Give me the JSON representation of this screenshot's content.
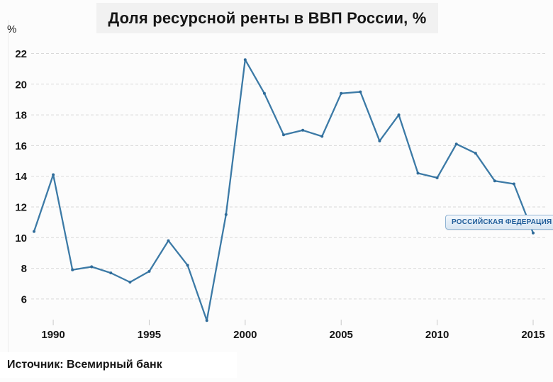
{
  "title": {
    "text": "Доля ресурсной ренты в ВВП России, %"
  },
  "y_axis": {
    "unit_label": "%"
  },
  "annotation": {
    "text": "РОССИЙСКАЯ ФЕДЕРАЦИЯ"
  },
  "source": {
    "text": "Источник: Всемирный банк"
  },
  "colors": {
    "line": "#3c7aa6",
    "marker": "#2f6b99",
    "grid": "#d9d9d9",
    "annotation_text": "#1f5c99",
    "annotation_border": "#8fb3d3",
    "title_band_bg": "#f1f1f1"
  },
  "chart_data": {
    "type": "line",
    "title": "Доля ресурсной ренты в ВВП России, %",
    "ylabel": "%",
    "xlabel": "",
    "x": [
      1989,
      1990,
      1991,
      1992,
      1993,
      1994,
      1995,
      1996,
      1997,
      1998,
      1999,
      2000,
      2001,
      2002,
      2003,
      2004,
      2005,
      2006,
      2007,
      2008,
      2009,
      2010,
      2011,
      2012,
      2013,
      2014,
      2015
    ],
    "values": [
      10.4,
      14.1,
      7.9,
      8.1,
      7.7,
      7.1,
      7.8,
      9.8,
      8.2,
      4.6,
      11.5,
      21.6,
      19.4,
      16.7,
      17.0,
      16.6,
      19.4,
      19.5,
      16.3,
      18.0,
      14.2,
      13.9,
      16.1,
      15.5,
      13.7,
      13.5,
      10.3
    ],
    "yticks": [
      6,
      8,
      10,
      12,
      14,
      16,
      18,
      20,
      22
    ],
    "xticks": [
      1990,
      1995,
      2000,
      2005,
      2010,
      2015
    ],
    "ylim": [
      4,
      22.5
    ],
    "xlim": [
      1988.5,
      2015.8
    ],
    "grid": "horizontal-dashed",
    "legend_position": "none",
    "annotations": [
      "РОССИЙСКАЯ ФЕДЕРАЦИЯ"
    ],
    "source": "Источник: Всемирный банк"
  }
}
